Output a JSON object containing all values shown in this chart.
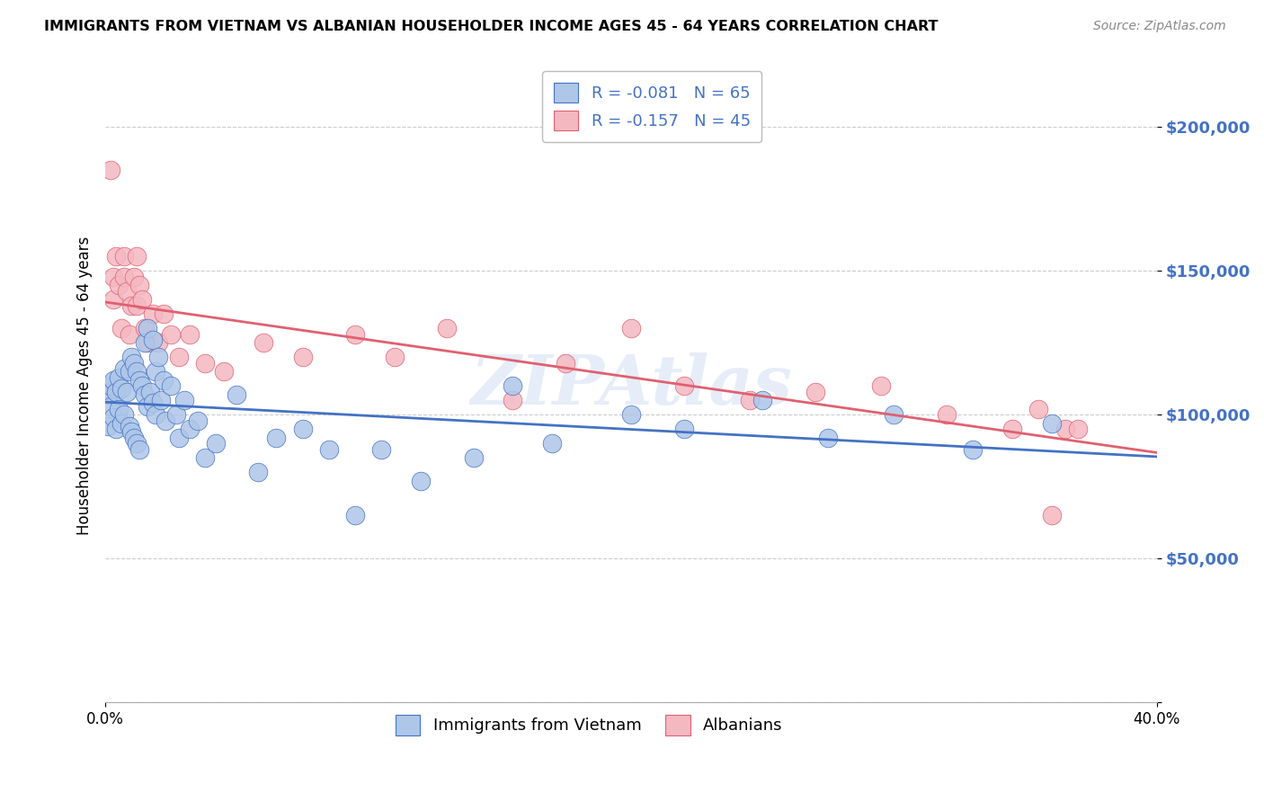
{
  "title": "IMMIGRANTS FROM VIETNAM VS ALBANIAN HOUSEHOLDER INCOME AGES 45 - 64 YEARS CORRELATION CHART",
  "source": "Source: ZipAtlas.com",
  "ylabel": "Householder Income Ages 45 - 64 years",
  "xmin": 0.0,
  "xmax": 0.4,
  "ymin": 0,
  "ymax": 220000,
  "yticks": [
    0,
    50000,
    100000,
    150000,
    200000
  ],
  "ytick_labels": [
    "",
    "$50,000",
    "$100,000",
    "$150,000",
    "$200,000"
  ],
  "xtick_positions": [
    0.0,
    0.4
  ],
  "xtick_labels": [
    "0.0%",
    "40.0%"
  ],
  "legend_r1": "-0.081",
  "legend_n1": "65",
  "legend_r2": "-0.157",
  "legend_n2": "45",
  "color_vietnam": "#aec6e8",
  "color_albanian": "#f4b8c1",
  "line_color_vietnam": "#4472c4",
  "line_color_albanian": "#e06070",
  "watermark": "ZIPAtlas",
  "vietnam_x": [
    0.001,
    0.001,
    0.002,
    0.002,
    0.003,
    0.003,
    0.004,
    0.004,
    0.005,
    0.005,
    0.006,
    0.006,
    0.007,
    0.007,
    0.008,
    0.009,
    0.009,
    0.01,
    0.01,
    0.011,
    0.011,
    0.012,
    0.012,
    0.013,
    0.013,
    0.014,
    0.015,
    0.015,
    0.016,
    0.016,
    0.017,
    0.018,
    0.018,
    0.019,
    0.019,
    0.02,
    0.021,
    0.022,
    0.023,
    0.025,
    0.027,
    0.028,
    0.03,
    0.032,
    0.035,
    0.038,
    0.042,
    0.05,
    0.058,
    0.065,
    0.075,
    0.085,
    0.095,
    0.105,
    0.12,
    0.14,
    0.155,
    0.17,
    0.2,
    0.22,
    0.25,
    0.275,
    0.3,
    0.33,
    0.36
  ],
  "vietnam_y": [
    107000,
    96000,
    110000,
    103000,
    112000,
    99000,
    108000,
    95000,
    113000,
    102000,
    109000,
    97000,
    116000,
    100000,
    108000,
    115000,
    96000,
    120000,
    94000,
    118000,
    92000,
    115000,
    90000,
    112000,
    88000,
    110000,
    125000,
    107000,
    130000,
    103000,
    108000,
    126000,
    104000,
    115000,
    100000,
    120000,
    105000,
    112000,
    98000,
    110000,
    100000,
    92000,
    105000,
    95000,
    98000,
    85000,
    90000,
    107000,
    80000,
    92000,
    95000,
    88000,
    65000,
    88000,
    77000,
    85000,
    110000,
    90000,
    100000,
    95000,
    105000,
    92000,
    100000,
    88000,
    97000
  ],
  "albanian_x": [
    0.001,
    0.002,
    0.003,
    0.003,
    0.004,
    0.005,
    0.006,
    0.007,
    0.007,
    0.008,
    0.009,
    0.01,
    0.011,
    0.012,
    0.012,
    0.013,
    0.014,
    0.015,
    0.016,
    0.018,
    0.02,
    0.022,
    0.025,
    0.028,
    0.032,
    0.038,
    0.045,
    0.06,
    0.075,
    0.095,
    0.11,
    0.13,
    0.155,
    0.175,
    0.2,
    0.22,
    0.245,
    0.27,
    0.295,
    0.32,
    0.345,
    0.355,
    0.36,
    0.365,
    0.37
  ],
  "albanian_y": [
    108000,
    185000,
    140000,
    148000,
    155000,
    145000,
    130000,
    155000,
    148000,
    143000,
    128000,
    138000,
    148000,
    138000,
    155000,
    145000,
    140000,
    130000,
    125000,
    135000,
    125000,
    135000,
    128000,
    120000,
    128000,
    118000,
    115000,
    125000,
    120000,
    128000,
    120000,
    130000,
    105000,
    118000,
    130000,
    110000,
    105000,
    108000,
    110000,
    100000,
    95000,
    102000,
    65000,
    95000,
    95000
  ]
}
